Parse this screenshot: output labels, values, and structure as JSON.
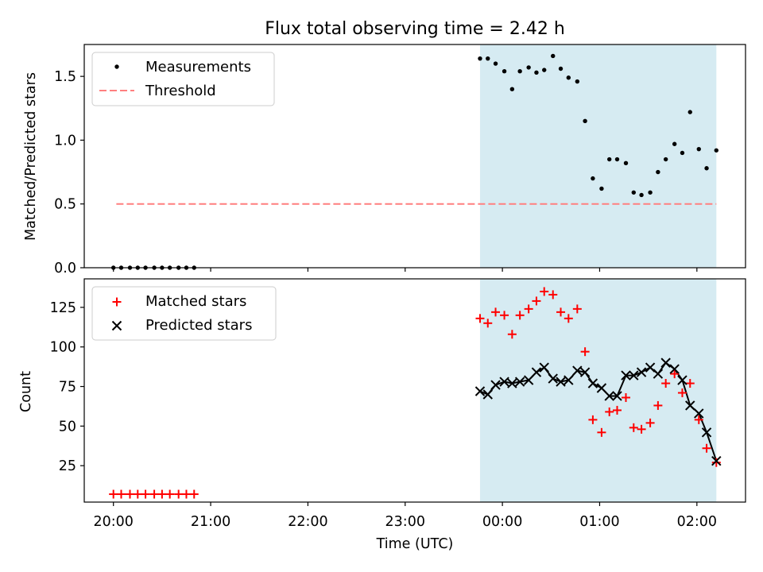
{
  "title": "Flux total observing time = 2.42 h",
  "xlabel": "Time (UTC)",
  "x_tick_labels": [
    "20:00",
    "21:00",
    "22:00",
    "23:00",
    "00:00",
    "01:00",
    "02:00"
  ],
  "colors": {
    "shade": "#add8e6",
    "measurements": "#000000",
    "threshold": "#ff7f7f",
    "matched": "#ff0000",
    "predicted": "#000000"
  },
  "chart_data": [
    {
      "type": "scatter",
      "ylabel": "Matched/Predicted stars",
      "xlim_hours": [
        19.7,
        26.5
      ],
      "ylim": [
        0,
        1.75
      ],
      "y_ticks": [
        0.0,
        0.5,
        1.0,
        1.5
      ],
      "y_tick_labels": [
        "0.0",
        "0.5",
        "1.0",
        "1.5"
      ],
      "shaded_region_hours": [
        23.77,
        26.2
      ],
      "legend": {
        "location": "upper left",
        "entries": [
          "Measurements",
          "Threshold"
        ]
      },
      "threshold": {
        "name": "Threshold",
        "value": 0.5,
        "x_range_hours": [
          20.03,
          26.2
        ]
      },
      "measurements": {
        "name": "Measurements",
        "x": [
          20.0,
          20.08,
          20.17,
          20.25,
          20.33,
          20.42,
          20.5,
          20.58,
          20.67,
          20.75,
          20.83,
          23.77,
          23.85,
          23.93,
          24.02,
          24.1,
          24.18,
          24.27,
          24.35,
          24.43,
          24.52,
          24.6,
          24.68,
          24.77,
          24.85,
          24.93,
          25.02,
          25.1,
          25.18,
          25.27,
          25.35,
          25.43,
          25.52,
          25.6,
          25.68,
          25.77,
          25.85,
          25.93,
          26.02,
          26.1,
          26.2
        ],
        "y": [
          0,
          0,
          0,
          0,
          0,
          0,
          0,
          0,
          0,
          0,
          0,
          1.64,
          1.64,
          1.6,
          1.54,
          1.4,
          1.54,
          1.57,
          1.53,
          1.55,
          1.66,
          1.56,
          1.49,
          1.46,
          1.15,
          0.7,
          0.62,
          0.85,
          0.85,
          0.82,
          0.59,
          0.57,
          0.59,
          0.75,
          0.85,
          0.97,
          0.9,
          1.22,
          0.93,
          0.78,
          0.92
        ]
      }
    },
    {
      "type": "scatter",
      "ylabel": "Count",
      "xlim_hours": [
        19.7,
        26.5
      ],
      "ylim": [
        2,
        143
      ],
      "y_ticks": [
        25,
        50,
        75,
        100,
        125
      ],
      "y_tick_labels": [
        "25",
        "50",
        "75",
        "100",
        "125"
      ],
      "shaded_region_hours": [
        23.77,
        26.2
      ],
      "legend": {
        "location": "upper left",
        "entries": [
          "Matched stars",
          "Predicted stars"
        ]
      },
      "series": [
        {
          "name": "Matched stars",
          "marker": "+",
          "x": [
            20.0,
            20.08,
            20.17,
            20.25,
            20.33,
            20.42,
            20.5,
            20.58,
            20.67,
            20.75,
            20.83,
            23.77,
            23.85,
            23.93,
            24.02,
            24.1,
            24.18,
            24.27,
            24.35,
            24.43,
            24.52,
            24.6,
            24.68,
            24.77,
            24.85,
            24.93,
            25.02,
            25.1,
            25.18,
            25.27,
            25.35,
            25.43,
            25.52,
            25.6,
            25.68,
            25.77,
            25.85,
            25.93,
            26.02,
            26.1,
            26.2
          ],
          "y": [
            7,
            7,
            7,
            7,
            7,
            7,
            7,
            7,
            7,
            7,
            7,
            118,
            115,
            122,
            120,
            108,
            120,
            124,
            129,
            135,
            133,
            122,
            118,
            124,
            97,
            54,
            46,
            59,
            60,
            68,
            49,
            48,
            52,
            63,
            77,
            83,
            71,
            77,
            54,
            36,
            27
          ]
        },
        {
          "name": "Predicted stars",
          "marker": "x",
          "x": [
            23.77,
            23.85,
            23.93,
            24.02,
            24.1,
            24.18,
            24.27,
            24.35,
            24.43,
            24.52,
            24.6,
            24.68,
            24.77,
            24.85,
            24.93,
            25.02,
            25.1,
            25.18,
            25.27,
            25.35,
            25.43,
            25.52,
            25.6,
            25.68,
            25.77,
            25.85,
            25.93,
            26.02,
            26.1,
            26.2
          ],
          "y": [
            72,
            70,
            76,
            78,
            77,
            78,
            79,
            84,
            87,
            80,
            78,
            79,
            85,
            84,
            77,
            74,
            69,
            69,
            82,
            82,
            84,
            87,
            83,
            90,
            86,
            79,
            63,
            58,
            46,
            28
          ]
        }
      ]
    }
  ]
}
